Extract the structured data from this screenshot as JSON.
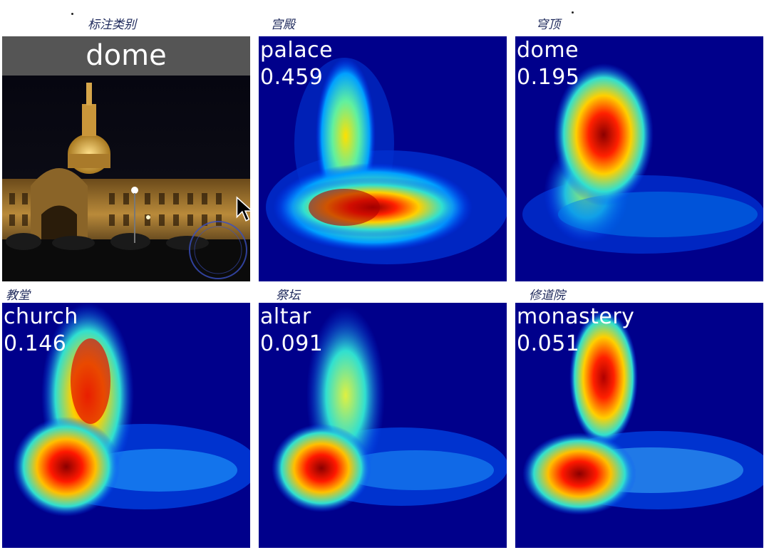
{
  "annotations": {
    "original": "标注类别",
    "palace": "宫殿",
    "dome": "穹顶",
    "church": "教堂",
    "altar": "祭坛",
    "monastery": "修道院"
  },
  "original": {
    "title": "dome"
  },
  "panels": [
    {
      "name": "palace",
      "score": "0.459"
    },
    {
      "name": "dome",
      "score": "0.195"
    },
    {
      "name": "church",
      "score": "0.146"
    },
    {
      "name": "altar",
      "score": "0.091"
    },
    {
      "name": "monastery",
      "score": "0.051"
    }
  ],
  "colors": {
    "heat_low": "#00008b",
    "heat_mid": "#00d0ff",
    "heat_high": "#ffff00",
    "heat_peak": "#ff0000"
  },
  "icons": [
    "cursor-arrow-icon"
  ]
}
